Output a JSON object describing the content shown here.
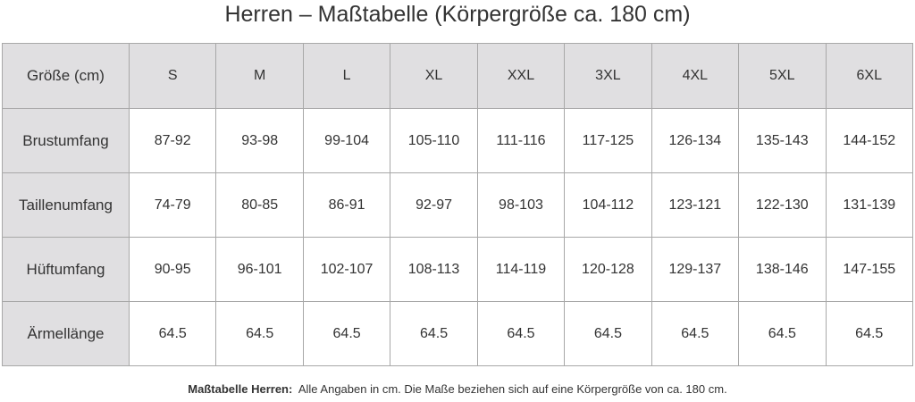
{
  "title": "Herren – Maßtabelle (Körpergröße ca. 180 cm)",
  "table": {
    "corner": "Größe (cm)",
    "sizes": [
      "S",
      "M",
      "L",
      "XL",
      "XXL",
      "3XL",
      "4XL",
      "5XL",
      "6XL"
    ],
    "rows": [
      {
        "label": "Brustumfang",
        "cells": [
          "87-92",
          "93-98",
          "99-104",
          "105-110",
          "111-116",
          "117-125",
          "126-134",
          "135-143",
          "144-152"
        ]
      },
      {
        "label": "Taillenumfang",
        "cells": [
          "74-79",
          "80-85",
          "86-91",
          "92-97",
          "98-103",
          "104-112",
          "123-121",
          "122-130",
          "131-139"
        ]
      },
      {
        "label": "Hüftumfang",
        "cells": [
          "90-95",
          "96-101",
          "102-107",
          "108-113",
          "114-119",
          "120-128",
          "129-137",
          "138-146",
          "147-155"
        ]
      },
      {
        "label": "Ärmellänge",
        "cells": [
          "64.5",
          "64.5",
          "64.5",
          "64.5",
          "64.5",
          "64.5",
          "64.5",
          "64.5",
          "64.5"
        ]
      }
    ]
  },
  "footnote": {
    "label": "Maßtabelle Herren:",
    "text": "Alle Angaben in cm. Die Maße beziehen sich auf eine Körpergröße von ca. 180 cm."
  }
}
